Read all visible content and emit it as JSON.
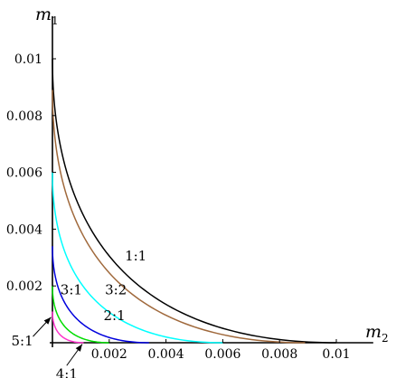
{
  "chart_data": {
    "type": "line",
    "xlabel": {
      "var": "m",
      "sub": "2"
    },
    "ylabel": {
      "var": "m",
      "sub": "1"
    },
    "xlim": [
      0,
      0.0113
    ],
    "ylim": [
      0,
      0.0115
    ],
    "grid": false,
    "x_ticks": [
      {
        "value": 0.002,
        "label": "0.002"
      },
      {
        "value": 0.004,
        "label": "0.004"
      },
      {
        "value": 0.006,
        "label": "0.006"
      },
      {
        "value": 0.008,
        "label": "0.008"
      },
      {
        "value": 0.01,
        "label": "0.01"
      }
    ],
    "y_ticks": [
      {
        "value": 0.002,
        "label": "0.002"
      },
      {
        "value": 0.004,
        "label": "0.004"
      },
      {
        "value": 0.006,
        "label": "0.006"
      },
      {
        "value": 0.008,
        "label": "0.008"
      },
      {
        "value": 0.01,
        "label": "0.01"
      }
    ],
    "series": [
      {
        "name": "1:1",
        "color": "#000000",
        "intercept": 0.01,
        "label_at": [
          0.00255,
          0.0029
        ]
      },
      {
        "name": "3:2",
        "color": "#a0693c",
        "intercept": 0.0089,
        "label_at": [
          0.00185,
          0.0017
        ]
      },
      {
        "name": "2:1",
        "color": "#00ffff",
        "intercept": 0.006,
        "label_at": [
          0.0018,
          0.0008
        ]
      },
      {
        "name": "3:1",
        "color": "#0000dd",
        "intercept": 0.0034,
        "label_at": [
          0.00028,
          0.0017
        ]
      },
      {
        "name": "4:1",
        "color": "#00dd00",
        "intercept": 0.002,
        "label_at": [
          0.00012,
          -0.00125
        ],
        "arrow_to": [
          0.00105,
          -5e-05
        ]
      },
      {
        "name": "5:1",
        "color": "#ff33cc",
        "intercept": 0.0011,
        "label_at": [
          -0.00145,
          -0.0001
        ],
        "arrow_to": [
          -5e-05,
          0.0009
        ]
      }
    ]
  }
}
